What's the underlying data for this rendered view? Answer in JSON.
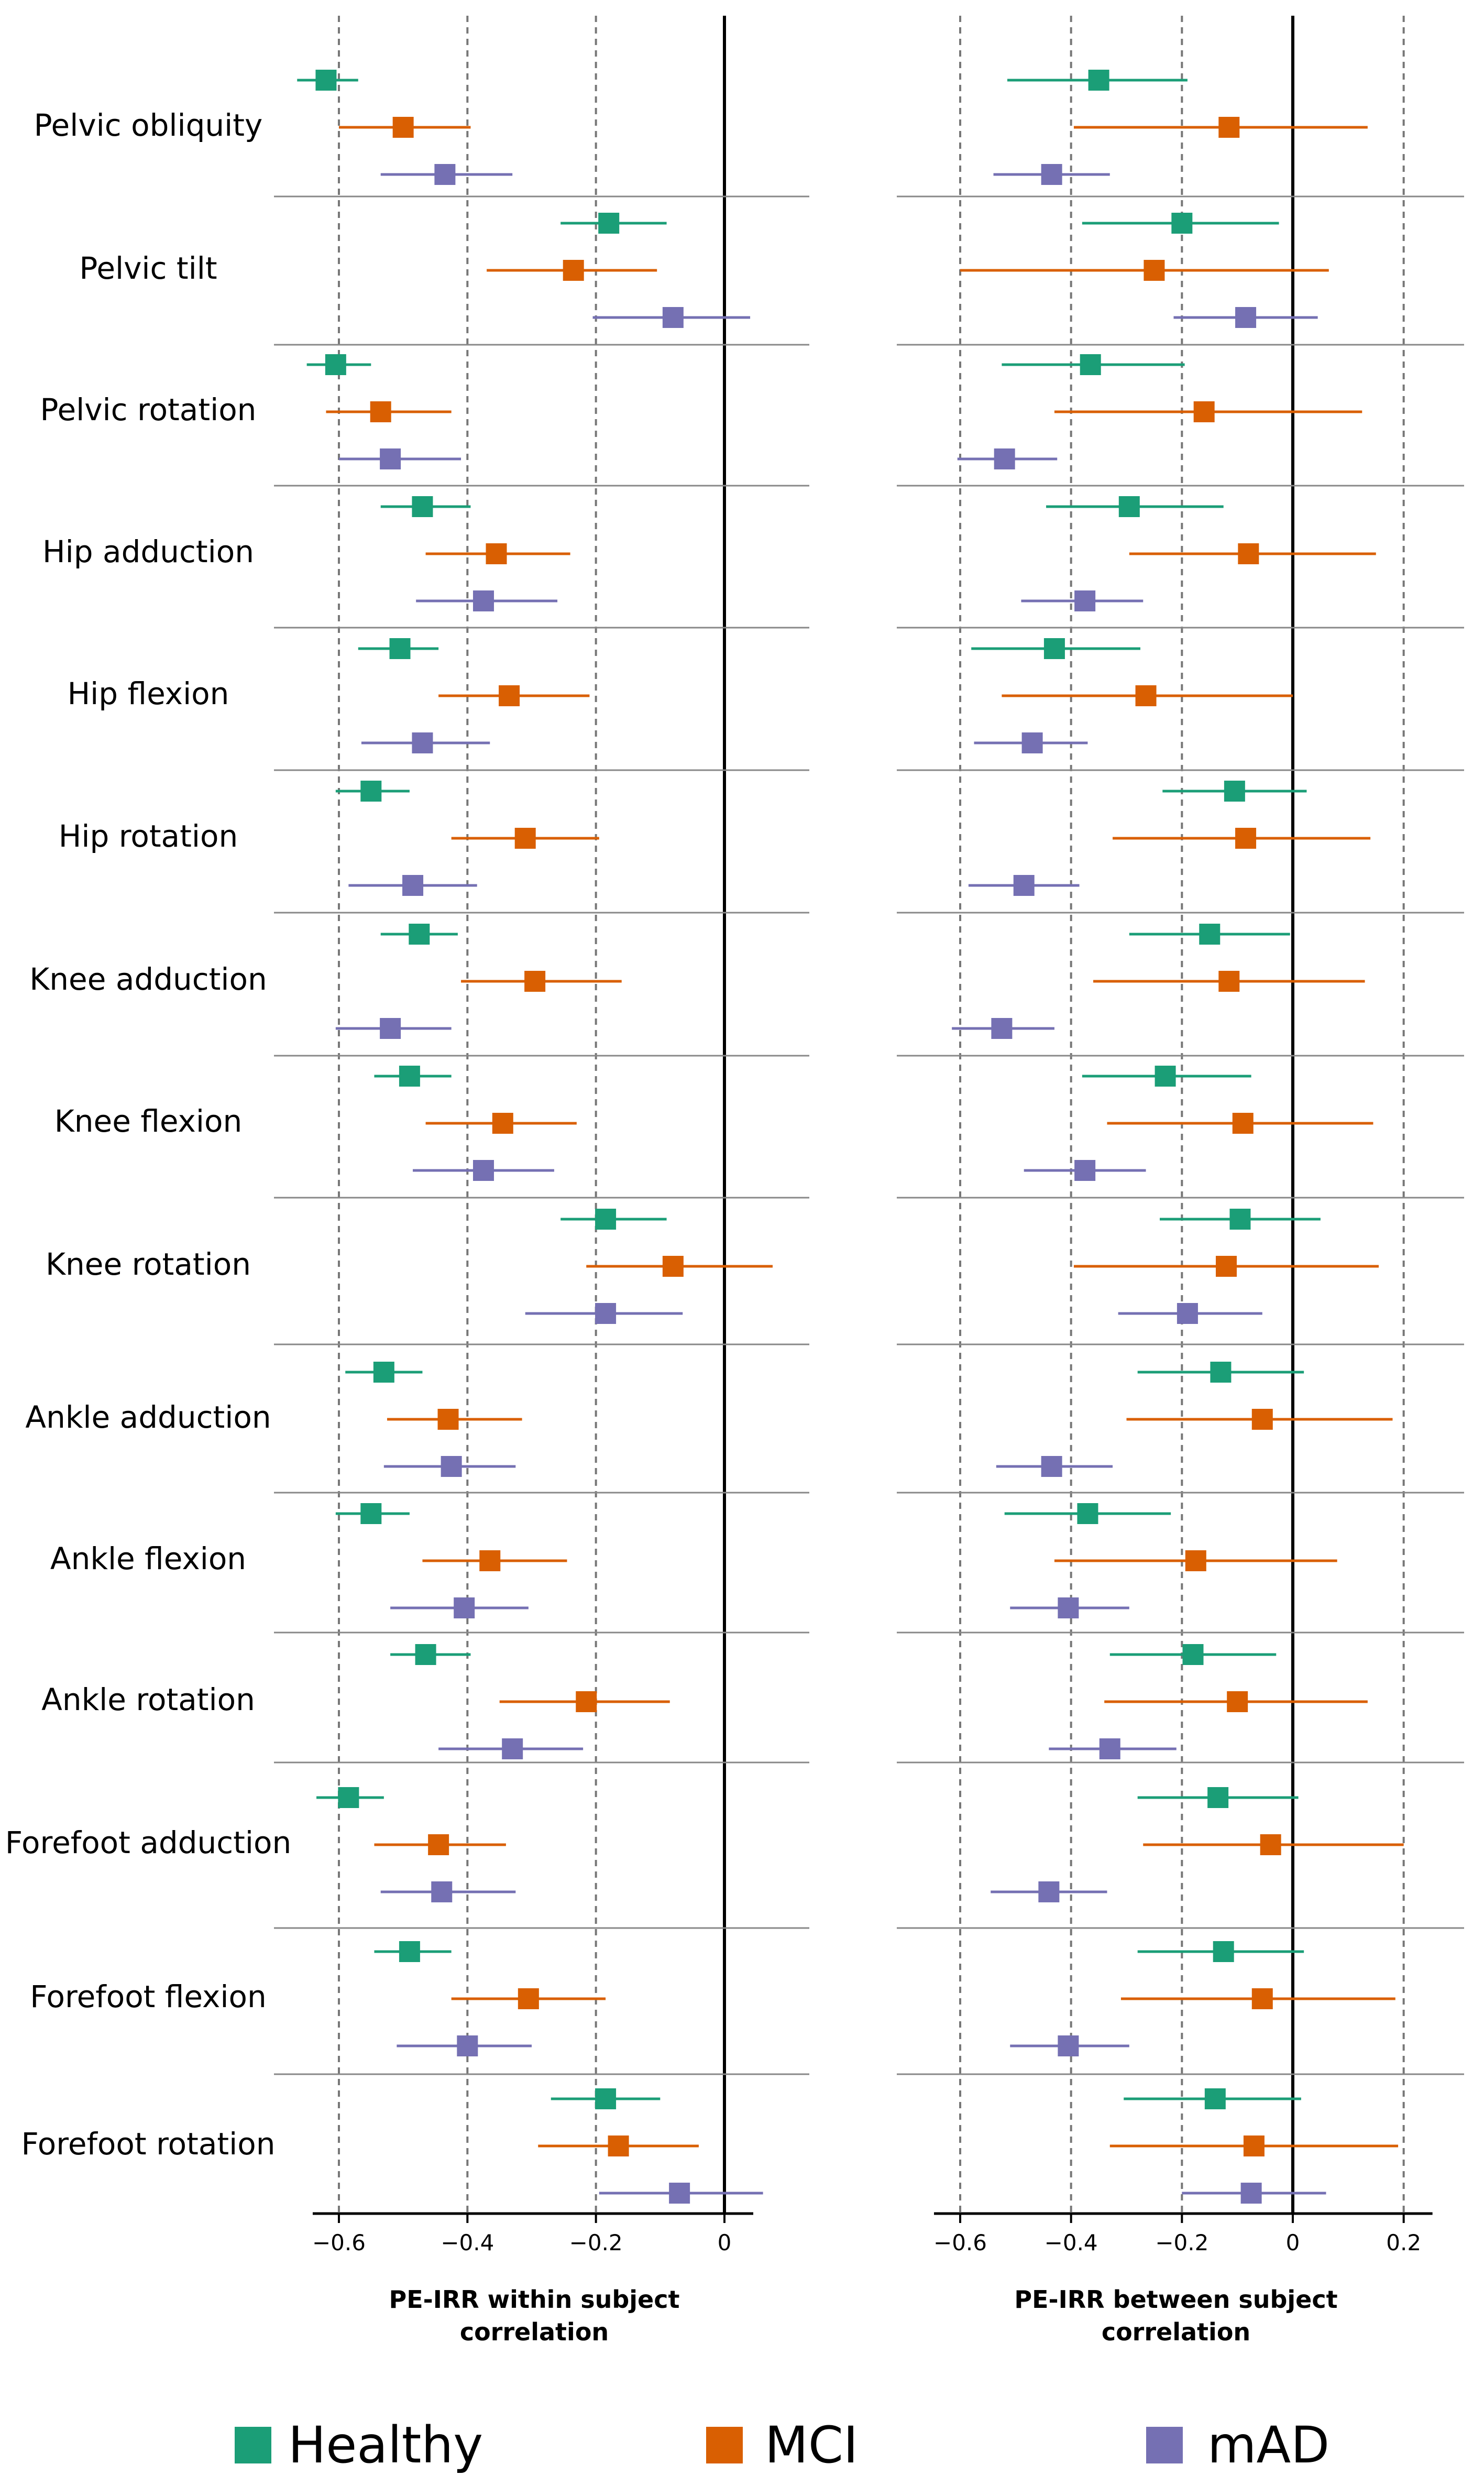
{
  "colors": {
    "Healthy": "#1b9e77",
    "MCI": "#d95f02",
    "mAD": "#7570b3",
    "divider": "#888888",
    "gridline": "#777777",
    "zeroline": "#000000"
  },
  "legend": [
    {
      "name": "Healthy",
      "color": "#1b9e77"
    },
    {
      "name": "MCI",
      "color": "#d95f02"
    },
    {
      "name": "mAD",
      "color": "#7570b3"
    }
  ],
  "rows": [
    "Pelvic obliquity",
    "Pelvic tilt",
    "Pelvic rotation",
    "Hip adduction",
    "Hip flexion",
    "Hip rotation",
    "Knee adduction",
    "Knee flexion",
    "Knee rotation",
    "Ankle adduction",
    "Ankle flexion",
    "Ankle rotation",
    "Forefoot adduction",
    "Forefoot flexion",
    "Forefoot rotation"
  ],
  "chart_data": [
    {
      "type": "forest",
      "xlabel": "PE-IRR within subject correlation",
      "xlim": [
        -0.71,
        0.13
      ],
      "xticks": [
        -0.6,
        -0.4,
        -0.2,
        0
      ],
      "xtick_labels": [
        "−0.6",
        "−0.4",
        "−0.2",
        "0"
      ],
      "dashed_gridlines": [
        -0.6,
        -0.4,
        -0.2
      ],
      "reference_line": 0,
      "series": [
        {
          "name": "Healthy",
          "points": [
            {
              "row": "Pelvic obliquity",
              "est": -0.62,
              "lo": -0.665,
              "hi": -0.57
            },
            {
              "row": "Pelvic tilt",
              "est": -0.18,
              "lo": -0.255,
              "hi": -0.09
            },
            {
              "row": "Pelvic rotation",
              "est": -0.605,
              "lo": -0.65,
              "hi": -0.55
            },
            {
              "row": "Hip adduction",
              "est": -0.47,
              "lo": -0.535,
              "hi": -0.395
            },
            {
              "row": "Hip flexion",
              "est": -0.505,
              "lo": -0.57,
              "hi": -0.445
            },
            {
              "row": "Hip rotation",
              "est": -0.55,
              "lo": -0.605,
              "hi": -0.49
            },
            {
              "row": "Knee adduction",
              "est": -0.475,
              "lo": -0.535,
              "hi": -0.415
            },
            {
              "row": "Knee flexion",
              "est": -0.49,
              "lo": -0.545,
              "hi": -0.425
            },
            {
              "row": "Knee rotation",
              "est": -0.185,
              "lo": -0.255,
              "hi": -0.09
            },
            {
              "row": "Ankle adduction",
              "est": -0.53,
              "lo": -0.59,
              "hi": -0.47
            },
            {
              "row": "Ankle flexion",
              "est": -0.55,
              "lo": -0.605,
              "hi": -0.49
            },
            {
              "row": "Ankle rotation",
              "est": -0.465,
              "lo": -0.52,
              "hi": -0.395
            },
            {
              "row": "Forefoot adduction",
              "est": -0.585,
              "lo": -0.635,
              "hi": -0.53
            },
            {
              "row": "Forefoot flexion",
              "est": -0.49,
              "lo": -0.545,
              "hi": -0.425
            },
            {
              "row": "Forefoot rotation",
              "est": -0.185,
              "lo": -0.27,
              "hi": -0.1
            }
          ]
        },
        {
          "name": "MCI",
          "points": [
            {
              "row": "Pelvic obliquity",
              "est": -0.5,
              "lo": -0.6,
              "hi": -0.395
            },
            {
              "row": "Pelvic tilt",
              "est": -0.235,
              "lo": -0.37,
              "hi": -0.105
            },
            {
              "row": "Pelvic rotation",
              "est": -0.535,
              "lo": -0.62,
              "hi": -0.425
            },
            {
              "row": "Hip adduction",
              "est": -0.355,
              "lo": -0.465,
              "hi": -0.24
            },
            {
              "row": "Hip flexion",
              "est": -0.335,
              "lo": -0.445,
              "hi": -0.21
            },
            {
              "row": "Hip rotation",
              "est": -0.31,
              "lo": -0.425,
              "hi": -0.195
            },
            {
              "row": "Knee adduction",
              "est": -0.295,
              "lo": -0.41,
              "hi": -0.16
            },
            {
              "row": "Knee flexion",
              "est": -0.345,
              "lo": -0.465,
              "hi": -0.23
            },
            {
              "row": "Knee rotation",
              "est": -0.08,
              "lo": -0.215,
              "hi": 0.075
            },
            {
              "row": "Ankle adduction",
              "est": -0.43,
              "lo": -0.525,
              "hi": -0.315
            },
            {
              "row": "Ankle flexion",
              "est": -0.365,
              "lo": -0.47,
              "hi": -0.245
            },
            {
              "row": "Ankle rotation",
              "est": -0.215,
              "lo": -0.35,
              "hi": -0.085
            },
            {
              "row": "Forefoot adduction",
              "est": -0.445,
              "lo": -0.545,
              "hi": -0.34
            },
            {
              "row": "Forefoot flexion",
              "est": -0.305,
              "lo": -0.425,
              "hi": -0.185
            },
            {
              "row": "Forefoot rotation",
              "est": -0.165,
              "lo": -0.29,
              "hi": -0.04
            }
          ]
        },
        {
          "name": "mAD",
          "points": [
            {
              "row": "Pelvic obliquity",
              "est": -0.435,
              "lo": -0.535,
              "hi": -0.33
            },
            {
              "row": "Pelvic tilt",
              "est": -0.08,
              "lo": -0.205,
              "hi": 0.04
            },
            {
              "row": "Pelvic rotation",
              "est": -0.52,
              "lo": -0.6,
              "hi": -0.41
            },
            {
              "row": "Hip adduction",
              "est": -0.375,
              "lo": -0.48,
              "hi": -0.26
            },
            {
              "row": "Hip flexion",
              "est": -0.47,
              "lo": -0.565,
              "hi": -0.365
            },
            {
              "row": "Hip rotation",
              "est": -0.485,
              "lo": -0.585,
              "hi": -0.385
            },
            {
              "row": "Knee adduction",
              "est": -0.52,
              "lo": -0.605,
              "hi": -0.425
            },
            {
              "row": "Knee flexion",
              "est": -0.375,
              "lo": -0.485,
              "hi": -0.265
            },
            {
              "row": "Knee rotation",
              "est": -0.185,
              "lo": -0.31,
              "hi": -0.065
            },
            {
              "row": "Ankle adduction",
              "est": -0.425,
              "lo": -0.53,
              "hi": -0.325
            },
            {
              "row": "Ankle flexion",
              "est": -0.405,
              "lo": -0.52,
              "hi": -0.305
            },
            {
              "row": "Ankle rotation",
              "est": -0.33,
              "lo": -0.445,
              "hi": -0.22
            },
            {
              "row": "Forefoot adduction",
              "est": -0.44,
              "lo": -0.535,
              "hi": -0.325
            },
            {
              "row": "Forefoot flexion",
              "est": -0.4,
              "lo": -0.51,
              "hi": -0.3
            },
            {
              "row": "Forefoot rotation",
              "est": -0.07,
              "lo": -0.195,
              "hi": 0.06
            }
          ]
        }
      ]
    },
    {
      "type": "forest",
      "xlabel": "PE-IRR between subject correlation",
      "xlim": [
        -0.69,
        0.26
      ],
      "xticks": [
        -0.6,
        -0.4,
        -0.2,
        0,
        0.2
      ],
      "xtick_labels": [
        "−0.6",
        "−0.4",
        "−0.2",
        "0",
        "0.2"
      ],
      "dashed_gridlines": [
        -0.6,
        -0.4,
        -0.2,
        0.2
      ],
      "reference_line": 0,
      "series": [
        {
          "name": "Healthy",
          "points": [
            {
              "row": "Pelvic obliquity",
              "est": -0.35,
              "lo": -0.515,
              "hi": -0.19
            },
            {
              "row": "Pelvic tilt",
              "est": -0.2,
              "lo": -0.38,
              "hi": -0.025
            },
            {
              "row": "Pelvic rotation",
              "est": -0.365,
              "lo": -0.525,
              "hi": -0.195
            },
            {
              "row": "Hip adduction",
              "est": -0.295,
              "lo": -0.445,
              "hi": -0.125
            },
            {
              "row": "Hip flexion",
              "est": -0.43,
              "lo": -0.58,
              "hi": -0.275
            },
            {
              "row": "Hip rotation",
              "est": -0.105,
              "lo": -0.235,
              "hi": 0.025
            },
            {
              "row": "Knee adduction",
              "est": -0.15,
              "lo": -0.295,
              "hi": -0.005
            },
            {
              "row": "Knee flexion",
              "est": -0.23,
              "lo": -0.38,
              "hi": -0.075
            },
            {
              "row": "Knee rotation",
              "est": -0.095,
              "lo": -0.24,
              "hi": 0.05
            },
            {
              "row": "Ankle adduction",
              "est": -0.13,
              "lo": -0.28,
              "hi": 0.02
            },
            {
              "row": "Ankle flexion",
              "est": -0.37,
              "lo": -0.52,
              "hi": -0.22
            },
            {
              "row": "Ankle rotation",
              "est": -0.18,
              "lo": -0.33,
              "hi": -0.03
            },
            {
              "row": "Forefoot adduction",
              "est": -0.135,
              "lo": -0.28,
              "hi": 0.01
            },
            {
              "row": "Forefoot flexion",
              "est": -0.125,
              "lo": -0.28,
              "hi": 0.02
            },
            {
              "row": "Forefoot rotation",
              "est": -0.14,
              "lo": -0.305,
              "hi": 0.015
            }
          ]
        },
        {
          "name": "MCI",
          "points": [
            {
              "row": "Pelvic obliquity",
              "est": -0.115,
              "lo": -0.395,
              "hi": 0.135
            },
            {
              "row": "Pelvic tilt",
              "est": -0.25,
              "lo": -0.6,
              "hi": 0.065
            },
            {
              "row": "Pelvic rotation",
              "est": -0.16,
              "lo": -0.43,
              "hi": 0.125
            },
            {
              "row": "Hip adduction",
              "est": -0.08,
              "lo": -0.295,
              "hi": 0.15
            },
            {
              "row": "Hip flexion",
              "est": -0.265,
              "lo": -0.525,
              "hi": 0.0
            },
            {
              "row": "Hip rotation",
              "est": -0.085,
              "lo": -0.325,
              "hi": 0.14
            },
            {
              "row": "Knee adduction",
              "est": -0.115,
              "lo": -0.36,
              "hi": 0.13
            },
            {
              "row": "Knee flexion",
              "est": -0.09,
              "lo": -0.335,
              "hi": 0.145
            },
            {
              "row": "Knee rotation",
              "est": -0.12,
              "lo": -0.395,
              "hi": 0.155
            },
            {
              "row": "Ankle adduction",
              "est": -0.055,
              "lo": -0.3,
              "hi": 0.18
            },
            {
              "row": "Ankle flexion",
              "est": -0.175,
              "lo": -0.43,
              "hi": 0.08
            },
            {
              "row": "Ankle rotation",
              "est": -0.1,
              "lo": -0.34,
              "hi": 0.135
            },
            {
              "row": "Forefoot adduction",
              "est": -0.04,
              "lo": -0.27,
              "hi": 0.2
            },
            {
              "row": "Forefoot flexion",
              "est": -0.055,
              "lo": -0.31,
              "hi": 0.185
            },
            {
              "row": "Forefoot rotation",
              "est": -0.07,
              "lo": -0.33,
              "hi": 0.19
            }
          ]
        },
        {
          "name": "mAD",
          "points": [
            {
              "row": "Pelvic obliquity",
              "est": -0.435,
              "lo": -0.54,
              "hi": -0.33
            },
            {
              "row": "Pelvic tilt",
              "est": -0.085,
              "lo": -0.215,
              "hi": 0.045
            },
            {
              "row": "Pelvic rotation",
              "est": -0.52,
              "lo": -0.605,
              "hi": -0.425
            },
            {
              "row": "Hip adduction",
              "est": -0.375,
              "lo": -0.49,
              "hi": -0.27
            },
            {
              "row": "Hip flexion",
              "est": -0.47,
              "lo": -0.575,
              "hi": -0.37
            },
            {
              "row": "Hip rotation",
              "est": -0.485,
              "lo": -0.585,
              "hi": -0.385
            },
            {
              "row": "Knee adduction",
              "est": -0.525,
              "lo": -0.615,
              "hi": -0.43
            },
            {
              "row": "Knee flexion",
              "est": -0.375,
              "lo": -0.485,
              "hi": -0.265
            },
            {
              "row": "Knee rotation",
              "est": -0.19,
              "lo": -0.315,
              "hi": -0.055
            },
            {
              "row": "Ankle adduction",
              "est": -0.435,
              "lo": -0.535,
              "hi": -0.325
            },
            {
              "row": "Ankle flexion",
              "est": -0.405,
              "lo": -0.51,
              "hi": -0.295
            },
            {
              "row": "Ankle rotation",
              "est": -0.33,
              "lo": -0.44,
              "hi": -0.21
            },
            {
              "row": "Forefoot adduction",
              "est": -0.44,
              "lo": -0.545,
              "hi": -0.335
            },
            {
              "row": "Forefoot flexion",
              "est": -0.405,
              "lo": -0.51,
              "hi": -0.295
            },
            {
              "row": "Forefoot rotation",
              "est": -0.075,
              "lo": -0.2,
              "hi": 0.06
            }
          ]
        }
      ]
    }
  ]
}
